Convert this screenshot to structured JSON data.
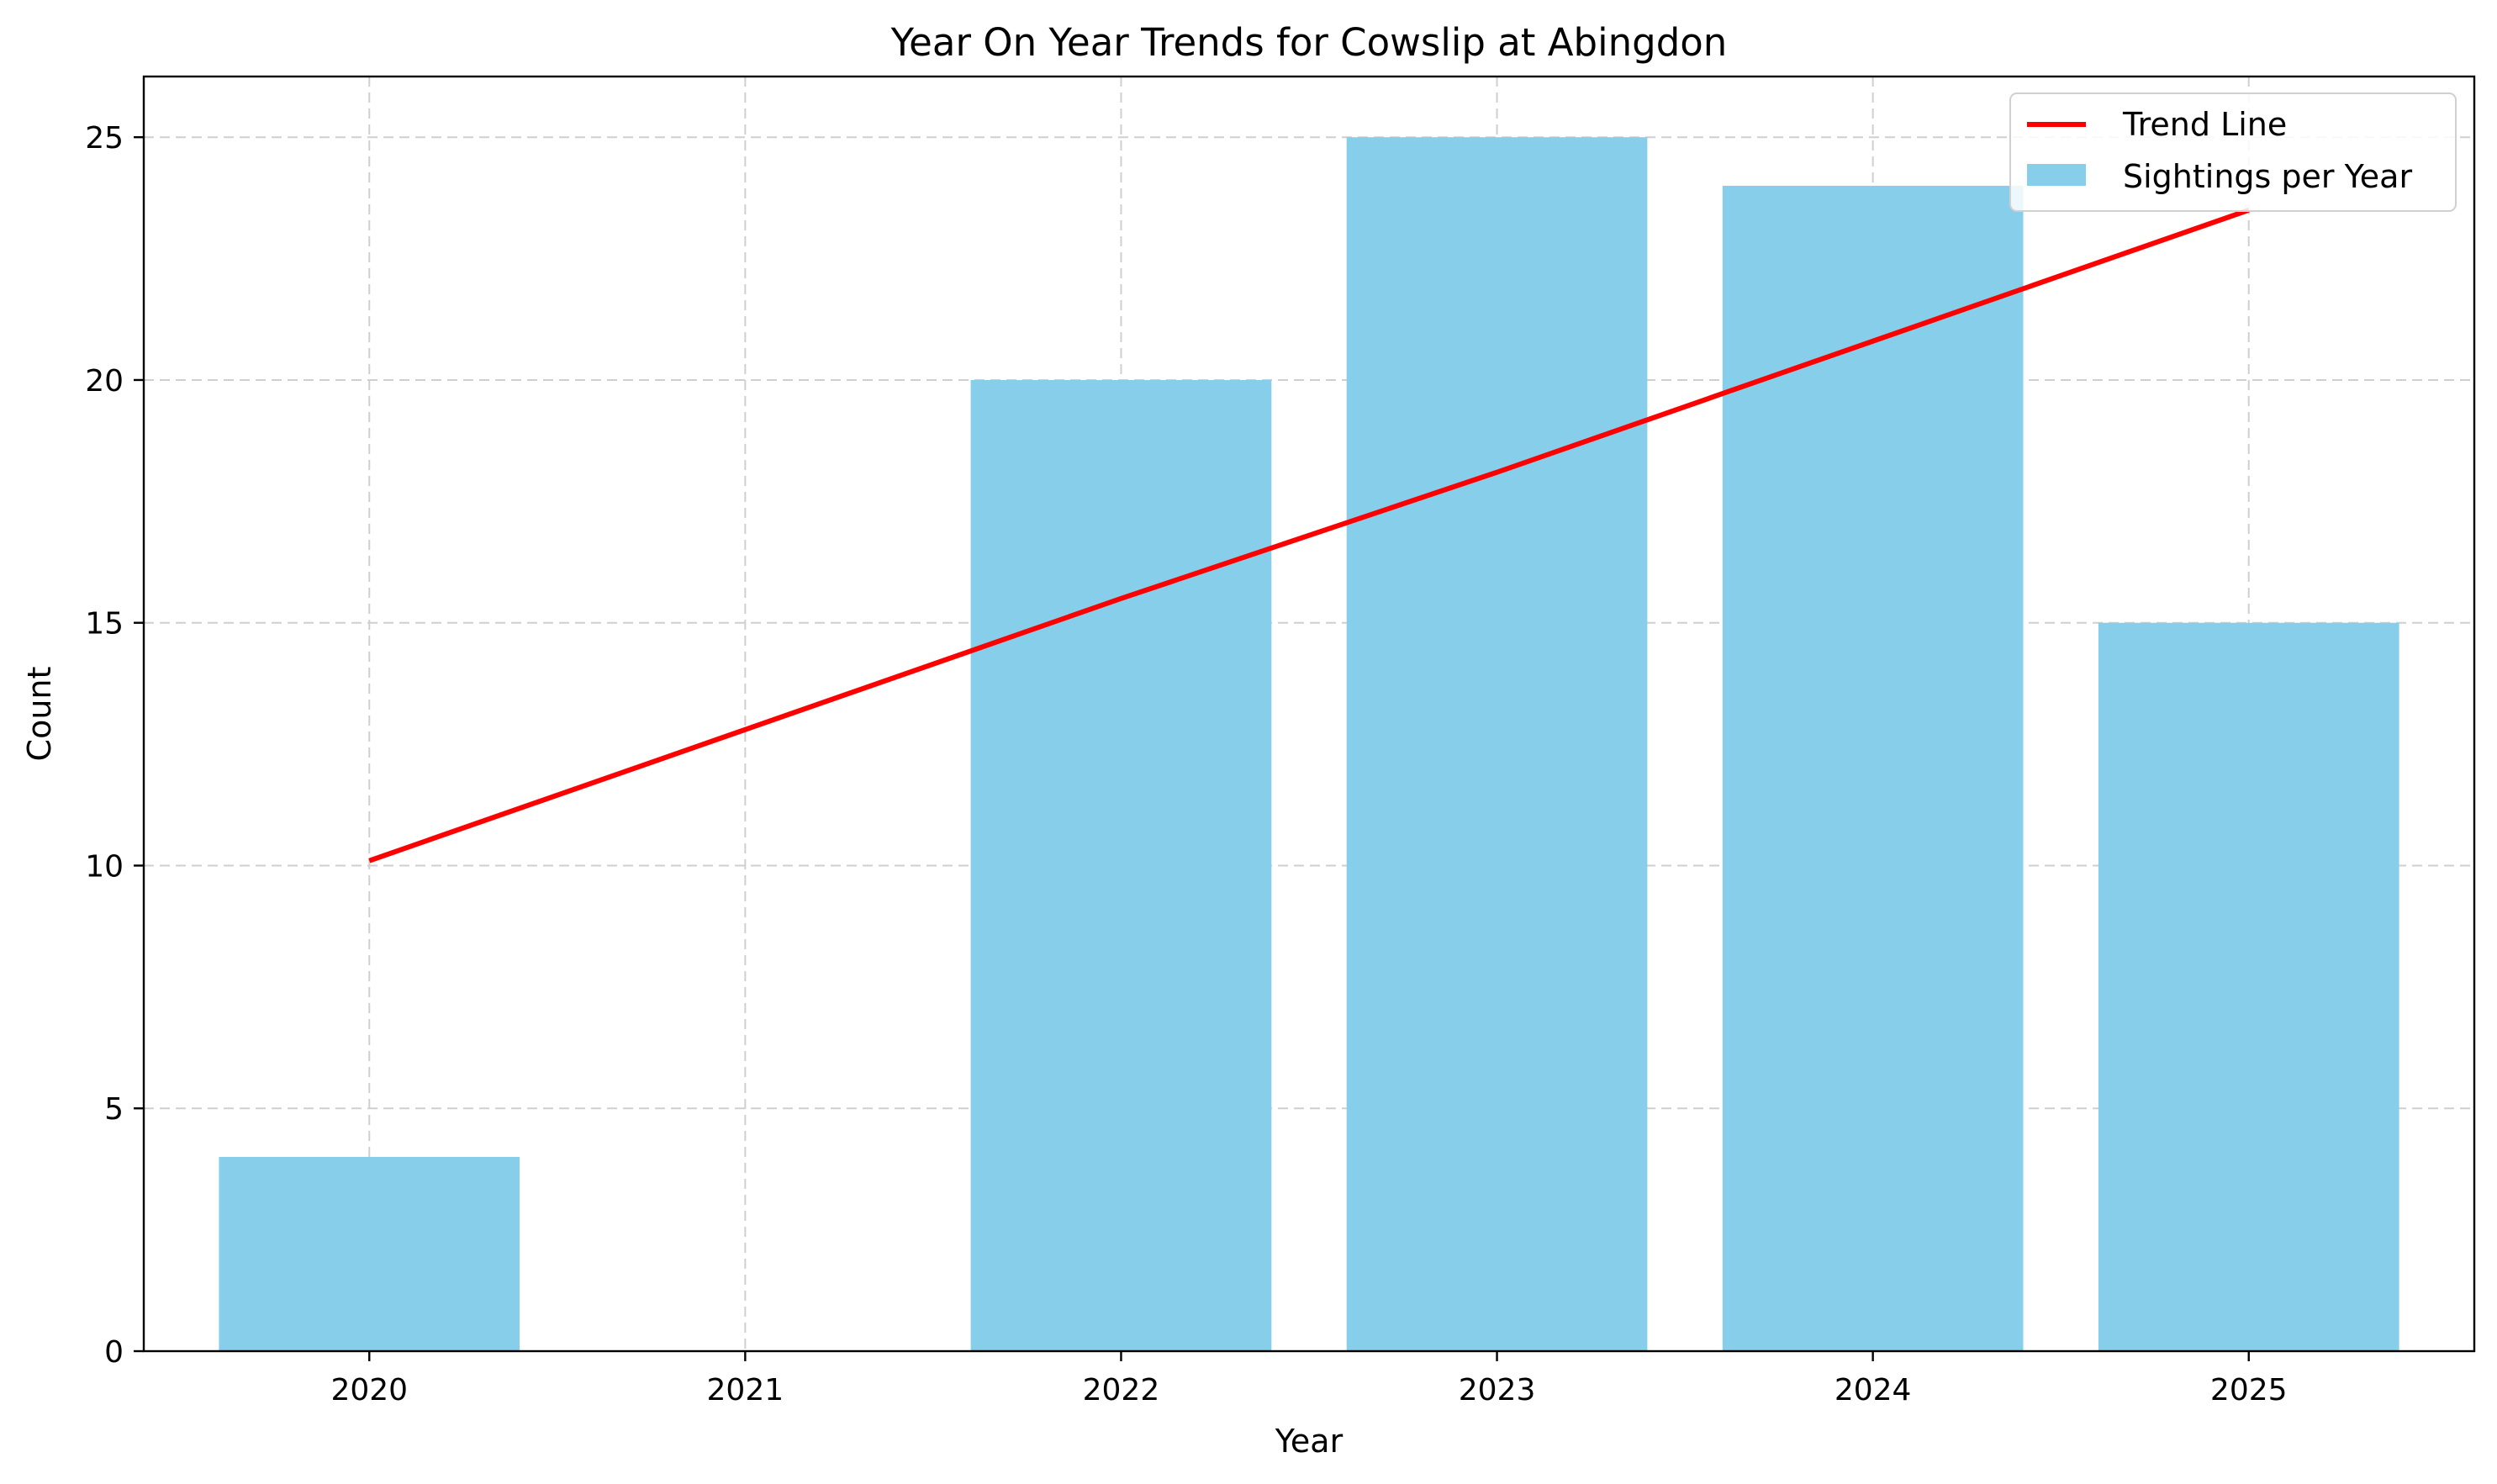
{
  "chart_data": {
    "type": "bar",
    "title": "Year On Year Trends for Cowslip at Abingdon",
    "xlabel": "Year",
    "ylabel": "Count",
    "categories": [
      "2020",
      "2021",
      "2022",
      "2023",
      "2024",
      "2025"
    ],
    "series": [
      {
        "name": "Sightings per Year",
        "type": "bar",
        "values": [
          4,
          0,
          20,
          25,
          24,
          15
        ],
        "color": "#87CEEB"
      },
      {
        "name": "Trend Line",
        "type": "line",
        "values": [
          10.1,
          12.8,
          15.5,
          18.1,
          20.8,
          23.5
        ],
        "color": "#FF0000"
      }
    ],
    "ylim": [
      0,
      26.25
    ],
    "yticks": [
      0,
      5,
      10,
      15,
      20,
      25
    ],
    "grid": true,
    "legend": "top-right"
  }
}
